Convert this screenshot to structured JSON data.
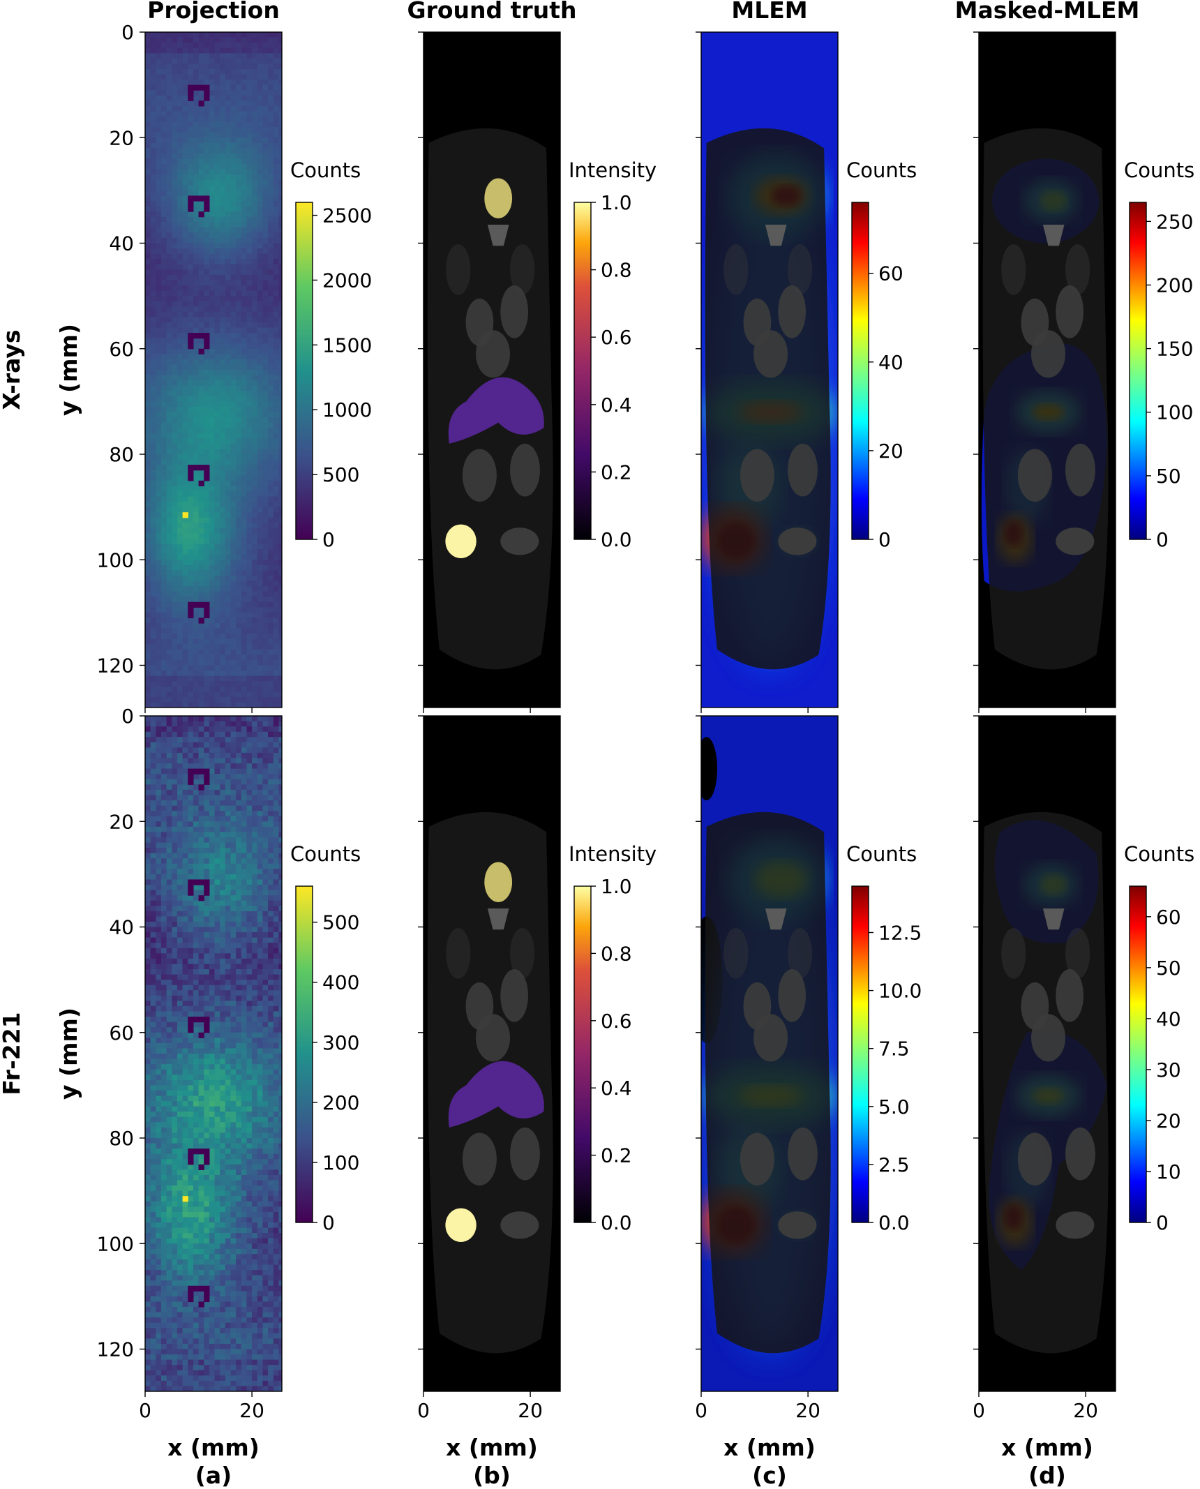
{
  "figure": {
    "column_titles": [
      "Projection",
      "Ground truth",
      "MLEM",
      "Masked-MLEM"
    ],
    "row_labels": [
      "X-rays",
      "Fr-221"
    ],
    "panel_labels": [
      "(a)",
      "(b)",
      "(c)",
      "(d)"
    ],
    "xlabel": "x (mm)",
    "ylabel": "y (mm)"
  },
  "chart_data": [
    {
      "type": "heatmap",
      "row": "X-rays",
      "column": "Projection",
      "colormap": "viridis",
      "colorbar_label": "Counts",
      "colorbar_range": [
        0,
        2600
      ],
      "colorbar_ticks": [
        "0",
        "500",
        "1000",
        "1500",
        "2000",
        "2500"
      ],
      "xlim": [
        0,
        25.6
      ],
      "ylim": [
        128,
        0
      ],
      "x_ticks": [
        "0",
        "20"
      ],
      "y_ticks": [
        "0",
        "20",
        "40",
        "60",
        "80",
        "100",
        "120"
      ]
    },
    {
      "type": "heatmap",
      "row": "X-rays",
      "column": "Ground truth",
      "colormap": "inferno",
      "colorbar_label": "Intensity",
      "colorbar_range": [
        0,
        1
      ],
      "colorbar_ticks": [
        "0.0",
        "0.2",
        "0.4",
        "0.6",
        "0.8",
        "1.0"
      ],
      "xlim": [
        0,
        25.6
      ],
      "ylim": [
        128,
        0
      ],
      "x_ticks": [
        "0",
        "20"
      ]
    },
    {
      "type": "heatmap",
      "row": "X-rays",
      "column": "MLEM",
      "colormap": "jet",
      "colorbar_label": "Counts",
      "colorbar_range": [
        0,
        76
      ],
      "colorbar_ticks": [
        "0",
        "20",
        "40",
        "60"
      ],
      "xlim": [
        0,
        25.6
      ],
      "ylim": [
        128,
        0
      ],
      "x_ticks": [
        "0",
        "20"
      ]
    },
    {
      "type": "heatmap",
      "row": "X-rays",
      "column": "Masked-MLEM",
      "colormap": "jet",
      "colorbar_label": "Counts",
      "colorbar_range": [
        0,
        265
      ],
      "colorbar_ticks": [
        "0",
        "50",
        "100",
        "150",
        "200",
        "250"
      ],
      "xlim": [
        0,
        25.6
      ],
      "ylim": [
        128,
        0
      ],
      "x_ticks": [
        "0",
        "20"
      ]
    },
    {
      "type": "heatmap",
      "row": "Fr-221",
      "column": "Projection",
      "colormap": "viridis",
      "colorbar_label": "Counts",
      "colorbar_range": [
        0,
        560
      ],
      "colorbar_ticks": [
        "0",
        "100",
        "200",
        "300",
        "400",
        "500"
      ],
      "xlim": [
        0,
        25.6
      ],
      "ylim": [
        128,
        0
      ],
      "x_ticks": [
        "0",
        "20"
      ],
      "y_ticks": [
        "0",
        "20",
        "40",
        "60",
        "80",
        "100",
        "120"
      ]
    },
    {
      "type": "heatmap",
      "row": "Fr-221",
      "column": "Ground truth",
      "colormap": "inferno",
      "colorbar_label": "Intensity",
      "colorbar_range": [
        0,
        1
      ],
      "colorbar_ticks": [
        "0.0",
        "0.2",
        "0.4",
        "0.6",
        "0.8",
        "1.0"
      ],
      "xlim": [
        0,
        25.6
      ],
      "ylim": [
        128,
        0
      ],
      "x_ticks": [
        "0",
        "20"
      ]
    },
    {
      "type": "heatmap",
      "row": "Fr-221",
      "column": "MLEM",
      "colormap": "jet",
      "colorbar_label": "Counts",
      "colorbar_range": [
        0,
        14.5
      ],
      "colorbar_ticks": [
        "0.0",
        "2.5",
        "5.0",
        "7.5",
        "10.0",
        "12.5"
      ],
      "xlim": [
        0,
        25.6
      ],
      "ylim": [
        128,
        0
      ],
      "x_ticks": [
        "0",
        "20"
      ]
    },
    {
      "type": "heatmap",
      "row": "Fr-221",
      "column": "Masked-MLEM",
      "colormap": "jet",
      "colorbar_label": "Counts",
      "colorbar_range": [
        0,
        66
      ],
      "colorbar_ticks": [
        "0",
        "10",
        "20",
        "30",
        "40",
        "50",
        "60"
      ],
      "xlim": [
        0,
        25.6
      ],
      "ylim": [
        128,
        0
      ],
      "x_ticks": [
        "0",
        "20"
      ]
    }
  ]
}
